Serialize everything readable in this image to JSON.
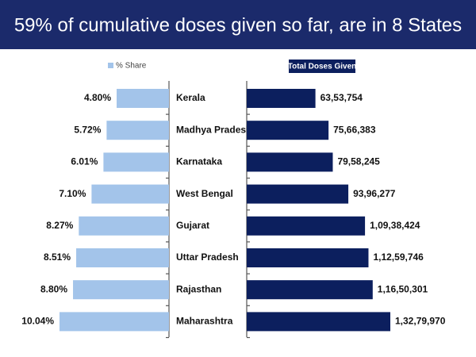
{
  "chart_data": {
    "type": "butterfly",
    "title": "59% of cumulative doses given so far, are in 8 States",
    "categories": [
      "Kerala",
      "Madhya Pradesh",
      "Karnataka",
      "West Bengal",
      "Gujarat",
      "Uttar Pradesh",
      "Rajasthan",
      "Maharashtra"
    ],
    "series": [
      {
        "name": "% Share",
        "color": "#a3c4ea",
        "values": [
          4.8,
          5.72,
          6.01,
          7.1,
          8.27,
          8.51,
          8.8,
          10.04
        ],
        "value_labels": [
          "4.80%",
          "5.72%",
          "6.01%",
          "7.10%",
          "8.27%",
          "8.51%",
          "8.80%",
          "10.04%"
        ]
      },
      {
        "name": "Total Doses Given",
        "color": "#0c1f5e",
        "values": [
          6353754,
          7566383,
          7958245,
          9396277,
          10938424,
          11259746,
          11650301,
          13279970
        ],
        "value_labels": [
          "63,53,754",
          "75,66,383",
          "79,58,245",
          "93,96,277",
          "1,09,38,424",
          "1,12,59,746",
          "1,16,50,301",
          "1,32,79,970"
        ]
      }
    ]
  }
}
